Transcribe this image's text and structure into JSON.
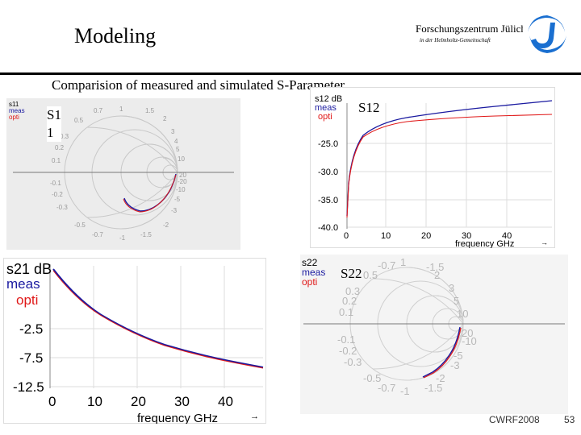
{
  "header": {
    "title": "Modeling",
    "institute": "Forschungszentrum Jülich",
    "institute_sub": "in der Helmholtz-Gemeinschaft"
  },
  "subtitle": "Comparision of measured and simulated S-Parameter",
  "colors": {
    "meas": "#1a1aa0",
    "opti": "#e01818",
    "grid": "#c8c8c8",
    "panel_bg": "#e8e8e8",
    "logo": "#1a6fd0"
  },
  "panels": {
    "s11": {
      "label": "S1\n1",
      "legend": [
        "s11",
        "meas",
        "opti"
      ],
      "ticks": [
        "0.7",
        "1",
        "1.5",
        "0.5",
        "0.3",
        "0.2",
        "0.1",
        "2",
        "3",
        "4",
        "5",
        "10",
        "20",
        "-0.1",
        "-0.2",
        "-0.3",
        "-0.5",
        "-0.7",
        "-1",
        "-1.5",
        "-2",
        "-3",
        "-5",
        "-10",
        "-20"
      ]
    },
    "s12": {
      "label": "S12",
      "legend": [
        "s12 dB",
        "meas",
        "opti"
      ],
      "y_ticks": [
        "-25.0",
        "-30.0",
        "-35.0",
        "-40.0"
      ],
      "x_ticks": [
        "0",
        "10",
        "20",
        "30",
        "40"
      ],
      "xlabel": "frequency GHz"
    },
    "s21": {
      "legend": [
        "s21 dB",
        "meas",
        "opti"
      ],
      "y_ticks": [
        "-2.5",
        "-7.5",
        "-12.5"
      ],
      "x_ticks": [
        "0",
        "10",
        "20",
        "30",
        "40"
      ],
      "xlabel": "frequency GHz"
    },
    "s22": {
      "label": "S22",
      "legend": [
        "s22",
        "meas",
        "opti"
      ],
      "ticks": [
        "-0.7",
        "1",
        "-1.5",
        "0.5",
        "2",
        "0.3",
        "3",
        "0.2",
        "5",
        "0.1",
        "10",
        "-0.1",
        "20",
        "-0.2",
        "-10",
        "-0.3",
        "-5",
        "-3",
        "-0.5",
        "-2",
        "-0.7",
        "-1",
        "-1.5"
      ]
    }
  },
  "footer": {
    "conference": "CWRF2008",
    "page": "53"
  }
}
